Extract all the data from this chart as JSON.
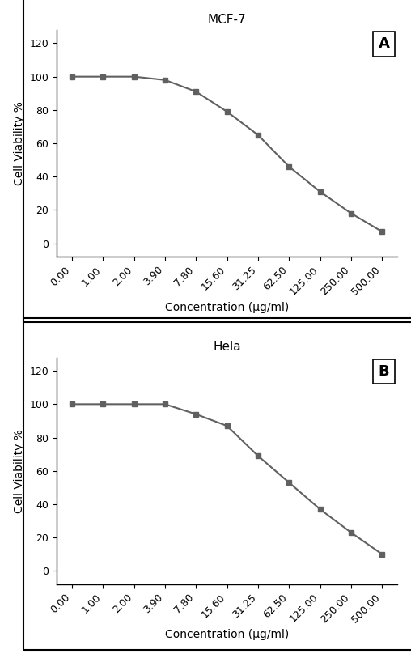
{
  "panel_A": {
    "title": "MCF-7",
    "label": "A",
    "x_labels": [
      "0.00",
      "1.00",
      "2.00",
      "3.90",
      "7.80",
      "15.60",
      "31.25",
      "62.50",
      "125.00",
      "250.00",
      "500.00"
    ],
    "y_values": [
      100,
      100,
      100,
      98,
      91,
      79,
      65,
      46,
      31,
      18,
      7
    ],
    "xlabel": "Concentration (μg/ml)",
    "ylabel": "Cell Viability %",
    "ylim": [
      -8,
      128
    ],
    "yticks": [
      0,
      20,
      40,
      60,
      80,
      100,
      120
    ]
  },
  "panel_B": {
    "title": "Hela",
    "label": "B",
    "x_labels": [
      "0.00",
      "1.00",
      "2.00",
      "3.90",
      "7.80",
      "15.60",
      "31.25",
      "62.50",
      "125.00",
      "250.00",
      "500.00"
    ],
    "y_values": [
      100,
      100,
      100,
      100,
      94,
      87,
      69,
      53,
      37,
      23,
      10
    ],
    "xlabel": "Concentration (μg/ml)",
    "ylabel": "Cell Viability %",
    "ylim": [
      -8,
      128
    ],
    "yticks": [
      0,
      20,
      40,
      60,
      80,
      100,
      120
    ]
  },
  "line_color": "#606060",
  "marker": "s",
  "marker_size": 5,
  "line_width": 1.5,
  "bg_color": "#ffffff",
  "plot_bg_color": "#ffffff",
  "font_color": "#000000",
  "box_color": "#000000",
  "tick_label_fontsize": 9,
  "axis_label_fontsize": 10,
  "title_fontsize": 11
}
